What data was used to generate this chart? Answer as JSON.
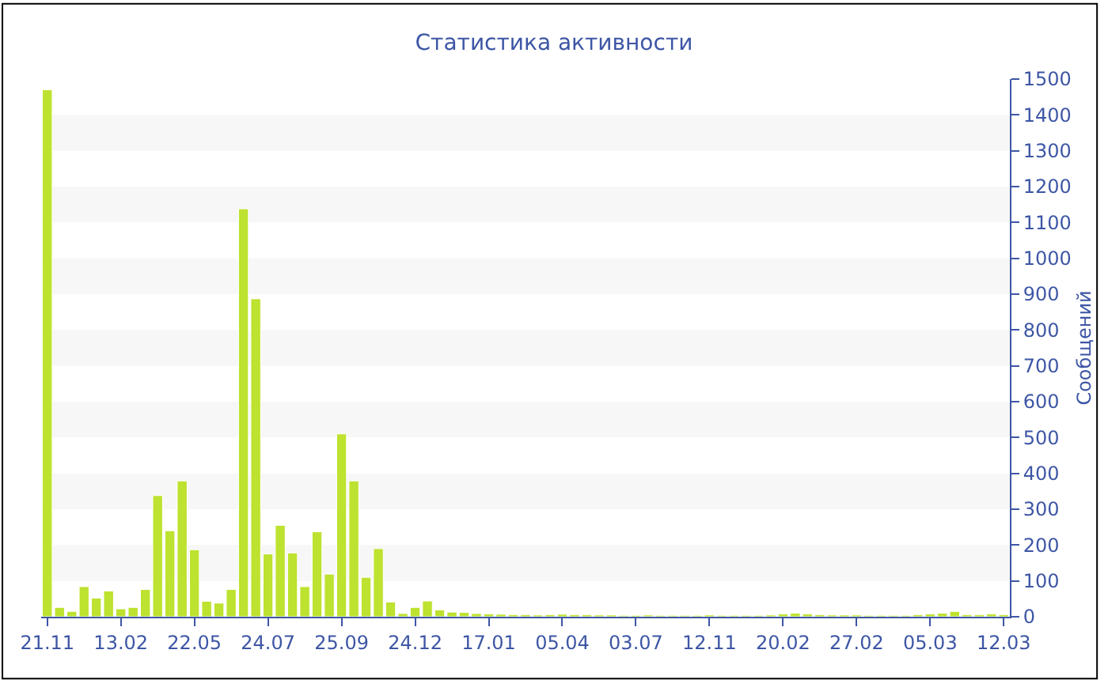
{
  "chart_data": {
    "type": "bar",
    "title": "Статистика активности",
    "ylabel": "Сообщений",
    "categories": [
      "21.11",
      null,
      null,
      null,
      null,
      null,
      "13.02",
      null,
      null,
      null,
      null,
      null,
      "22.05",
      null,
      null,
      null,
      null,
      null,
      "24.07",
      null,
      null,
      null,
      null,
      null,
      "25.09",
      null,
      null,
      null,
      null,
      null,
      "24.12",
      null,
      null,
      null,
      null,
      null,
      "17.01",
      null,
      null,
      null,
      null,
      null,
      "05.04",
      null,
      null,
      null,
      null,
      null,
      "03.07",
      null,
      null,
      null,
      null,
      null,
      "12.11",
      null,
      null,
      null,
      null,
      null,
      "20.02",
      null,
      null,
      null,
      null,
      null,
      "27.02",
      null,
      null,
      null,
      null,
      null,
      "05.03",
      null,
      null,
      null,
      null,
      null,
      "12.03"
    ],
    "values": [
      1470,
      26,
      15,
      84,
      52,
      72,
      22,
      26,
      76,
      338,
      240,
      379,
      187,
      43,
      38,
      76,
      1138,
      887,
      175,
      255,
      178,
      84,
      237,
      119,
      510,
      379,
      110,
      190,
      41,
      9,
      26,
      44,
      19,
      13,
      12,
      9,
      8,
      7,
      6,
      6,
      5,
      6,
      7,
      6,
      6,
      5,
      5,
      4,
      4,
      5,
      4,
      4,
      4,
      4,
      5,
      4,
      4,
      4,
      4,
      5,
      8,
      10,
      8,
      6,
      5,
      5,
      5,
      4,
      4,
      4,
      4,
      6,
      8,
      10,
      15,
      6,
      6,
      8,
      6
    ],
    "color": "#bde22f",
    "ylim": [
      0,
      1500
    ],
    "yticks": [
      0,
      100,
      200,
      300,
      400,
      500,
      600,
      700,
      800,
      900,
      1000,
      1100,
      1200,
      1300,
      1400,
      1500
    ],
    "bands": [
      {
        "axis": "y",
        "from": 100,
        "to": 200,
        "color": "#f7f7f7"
      },
      {
        "axis": "y",
        "from": 300,
        "to": 400,
        "color": "#f7f7f7"
      },
      {
        "axis": "y",
        "from": 500,
        "to": 600,
        "color": "#f7f7f7"
      },
      {
        "axis": "y",
        "from": 700,
        "to": 800,
        "color": "#f7f7f7"
      },
      {
        "axis": "y",
        "from": 900,
        "to": 1000,
        "color": "#f7f7f7"
      },
      {
        "axis": "y",
        "from": 1100,
        "to": 1200,
        "color": "#f7f7f7"
      },
      {
        "axis": "y",
        "from": 1300,
        "to": 1400,
        "color": "#f7f7f7"
      }
    ],
    "legend": false
  }
}
